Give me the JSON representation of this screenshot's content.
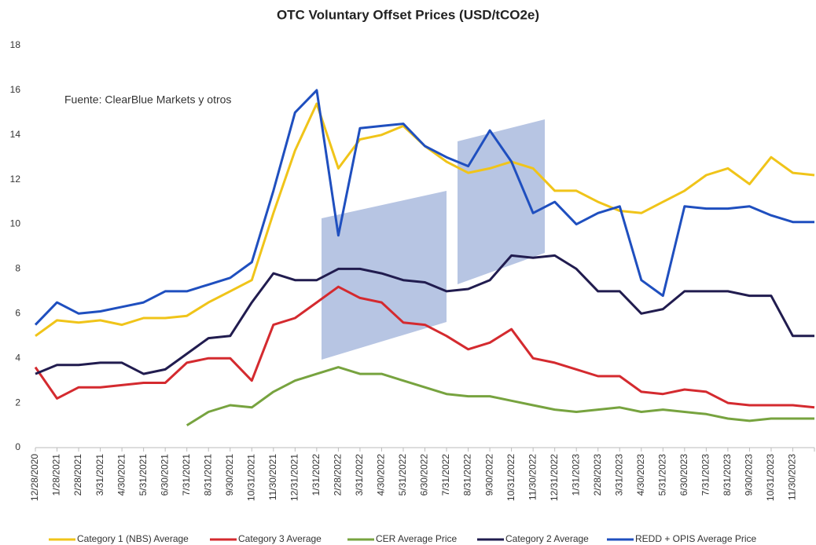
{
  "chart_data": {
    "type": "line",
    "title": "OTC Voluntary Offset Prices (USD/tCO2e)",
    "annotations": [
      "Fuente: ClearBlue Markets y otros"
    ],
    "categories": [
      "12/28/2020",
      "1/28/2021",
      "2/28/2021",
      "3/31/2021",
      "4/30/2021",
      "5/31/2021",
      "6/30/2021",
      "7/31/2021",
      "8/31/2021",
      "9/30/2021",
      "10/31/2021",
      "11/30/2021",
      "12/31/2021",
      "1/31/2022",
      "2/28/2022",
      "3/31/2022",
      "4/30/2022",
      "5/31/2022",
      "6/30/2022",
      "7/31/2022",
      "8/31/2022",
      "9/30/2022",
      "10/31/2022",
      "11/30/2022",
      "12/31/2022",
      "1/31/2023",
      "2/28/2023",
      "3/31/2023",
      "4/30/2023",
      "5/31/2023",
      "6/30/2023",
      "7/31/2023",
      "8/31/2023",
      "9/30/2023",
      "10/31/2023",
      "11/30/2023",
      null
    ],
    "series": [
      {
        "name": "Category 1 (NBS) Average",
        "color": "#f0c419",
        "values": [
          5.0,
          5.7,
          5.6,
          5.7,
          5.5,
          5.8,
          5.8,
          5.9,
          6.5,
          7.0,
          7.5,
          10.5,
          13.3,
          15.4,
          12.5,
          13.8,
          14.0,
          14.4,
          13.5,
          12.8,
          12.3,
          12.5,
          12.8,
          12.5,
          11.5,
          11.5,
          11.0,
          10.6,
          10.5,
          11.0,
          11.5,
          12.2,
          12.5,
          11.8,
          13.0,
          12.3,
          12.2
        ]
      },
      {
        "name": "Category 3 Average",
        "color": "#d42a2f",
        "values": [
          3.6,
          2.2,
          2.7,
          2.7,
          2.8,
          2.9,
          2.9,
          3.8,
          4.0,
          4.0,
          3.0,
          5.5,
          5.8,
          6.5,
          7.2,
          6.7,
          6.5,
          5.6,
          5.5,
          5.0,
          4.4,
          4.7,
          5.3,
          4.0,
          3.8,
          3.5,
          3.2,
          3.2,
          2.5,
          2.4,
          2.6,
          2.5,
          2.0,
          1.9,
          1.9,
          1.9,
          1.8
        ]
      },
      {
        "name": "CER Average Price",
        "color": "#77a33f",
        "values": [
          null,
          null,
          null,
          null,
          null,
          null,
          null,
          1.0,
          1.6,
          1.9,
          1.8,
          2.5,
          3.0,
          3.3,
          3.6,
          3.3,
          3.3,
          3.0,
          2.7,
          2.4,
          2.3,
          2.3,
          2.1,
          1.9,
          1.7,
          1.6,
          1.7,
          1.8,
          1.6,
          1.7,
          1.6,
          1.5,
          1.3,
          1.2,
          1.3,
          1.3,
          1.3
        ]
      },
      {
        "name": "Category 2 Average",
        "color": "#211c4f",
        "values": [
          3.3,
          3.7,
          3.7,
          3.8,
          3.8,
          3.3,
          3.5,
          4.2,
          4.9,
          5.0,
          6.5,
          7.8,
          7.5,
          7.5,
          8.0,
          8.0,
          7.8,
          7.5,
          7.4,
          7.0,
          7.1,
          7.5,
          8.6,
          8.5,
          8.6,
          8.0,
          7.0,
          7.0,
          6.0,
          6.2,
          7.0,
          7.0,
          7.0,
          6.8,
          6.8,
          5.0,
          5.0
        ]
      },
      {
        "name": "REDD + OPIS Average Price",
        "color": "#1f4fbf",
        "values": [
          5.5,
          6.5,
          6.0,
          6.1,
          6.3,
          6.5,
          7.0,
          7.0,
          7.3,
          7.6,
          8.3,
          11.5,
          15.0,
          16.0,
          9.5,
          14.3,
          14.4,
          14.5,
          13.5,
          13.0,
          12.6,
          14.2,
          12.8,
          10.5,
          11.0,
          10.0,
          10.5,
          10.8,
          7.5,
          6.8,
          10.8,
          10.7,
          10.7,
          10.8,
          10.4,
          10.1,
          10.1
        ]
      }
    ],
    "ylim": [
      0,
      18
    ],
    "yticks": [
      0,
      2,
      4,
      6,
      8,
      10,
      12,
      14,
      16,
      18
    ],
    "legend": "bottom"
  }
}
